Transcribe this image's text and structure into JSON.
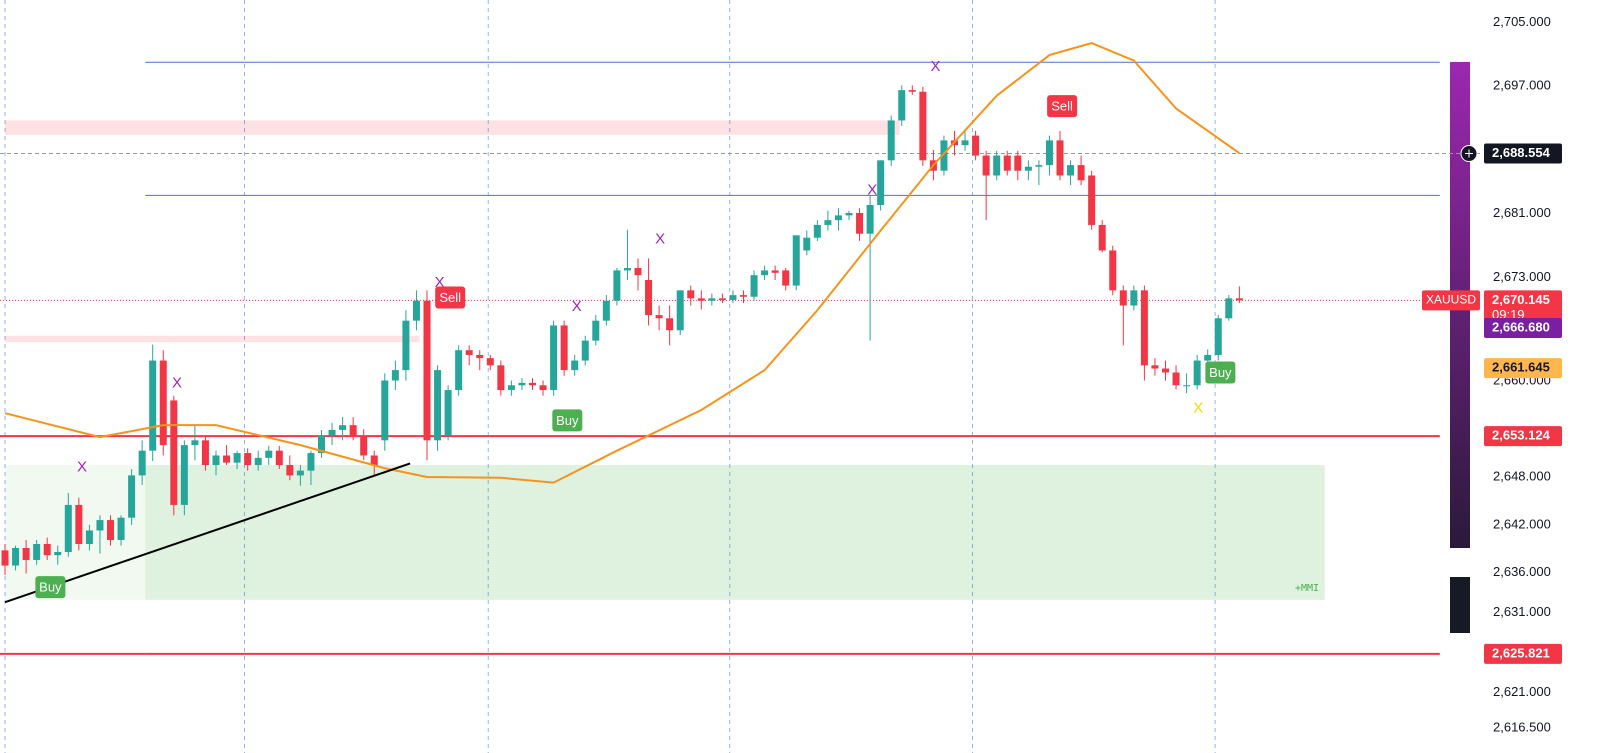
{
  "chart_data": {
    "type": "candlestick",
    "symbol": "XAUUSD",
    "up_color": "#26a69a",
    "down_color": "#f23645",
    "ylim": [
      2613.4,
      2707.8
    ],
    "yticks": [
      {
        "value": 2705,
        "label": "2,705.000"
      },
      {
        "value": 2697,
        "label": "2,697.000"
      },
      {
        "value": 2681,
        "label": "2,681.000"
      },
      {
        "value": 2673,
        "label": "2,673.000"
      },
      {
        "value": 2660,
        "label": "2,660.000"
      },
      {
        "value": 2648,
        "label": "2,648.000"
      },
      {
        "value": 2642,
        "label": "2,642.000"
      },
      {
        "value": 2636,
        "label": "2,636.000"
      },
      {
        "value": 2631,
        "label": "2,631.000"
      },
      {
        "value": 2621,
        "label": "2,621.000"
      },
      {
        "value": 2616.5,
        "label": "2,616.500"
      }
    ],
    "xticks": [
      0,
      22.7,
      45.8,
      68.7,
      91.7,
      114.7
    ],
    "ohlc": [
      [
        2638.8,
        2639.6,
        2635.7,
        2636.9
      ],
      [
        2636.9,
        2639.4,
        2636.3,
        2639.1
      ],
      [
        2639.1,
        2640.1,
        2635.9,
        2637.6
      ],
      [
        2637.6,
        2640.1,
        2637.0,
        2639.6
      ],
      [
        2639.6,
        2640.4,
        2637.6,
        2638.2
      ],
      [
        2638.2,
        2639.4,
        2637.0,
        2638.6
      ],
      [
        2638.6,
        2646.0,
        2638.0,
        2644.5
      ],
      [
        2644.5,
        2645.4,
        2638.8,
        2639.6
      ],
      [
        2639.6,
        2642.0,
        2638.8,
        2641.3
      ],
      [
        2641.3,
        2643.2,
        2638.4,
        2642.6
      ],
      [
        2642.6,
        2643.2,
        2639.4,
        2640.1
      ],
      [
        2640.1,
        2643.2,
        2639.4,
        2642.9
      ],
      [
        2642.9,
        2649.0,
        2642.0,
        2648.2
      ],
      [
        2648.2,
        2652.6,
        2647.0,
        2651.3
      ],
      [
        2651.3,
        2664.6,
        2650.0,
        2662.6
      ],
      [
        2662.6,
        2663.9,
        2650.7,
        2652.0
      ],
      [
        2657.6,
        2658.2,
        2643.2,
        2644.5
      ],
      [
        2644.5,
        2652.6,
        2643.2,
        2652.0
      ],
      [
        2652.0,
        2654.5,
        2650.1,
        2652.6
      ],
      [
        2652.6,
        2653.2,
        2648.8,
        2649.5
      ],
      [
        2649.5,
        2651.3,
        2648.2,
        2650.7
      ],
      [
        2650.7,
        2652.0,
        2649.5,
        2649.8
      ],
      [
        2649.8,
        2651.3,
        2649.0,
        2651.0
      ],
      [
        2651.0,
        2651.6,
        2648.8,
        2649.5
      ],
      [
        2649.5,
        2651.3,
        2648.8,
        2650.4
      ],
      [
        2650.4,
        2651.9,
        2649.5,
        2651.3
      ],
      [
        2651.3,
        2651.9,
        2649.0,
        2649.5
      ],
      [
        2649.5,
        2650.7,
        2647.6,
        2648.2
      ],
      [
        2648.2,
        2649.5,
        2646.9,
        2648.8
      ],
      [
        2648.8,
        2651.3,
        2647.0,
        2651.0
      ],
      [
        2651.0,
        2653.9,
        2650.4,
        2653.2
      ],
      [
        2653.2,
        2654.8,
        2652.0,
        2653.9
      ],
      [
        2653.9,
        2655.5,
        2652.6,
        2654.5
      ],
      [
        2654.5,
        2655.5,
        2652.6,
        2653.2
      ],
      [
        2653.2,
        2654.0,
        2650.1,
        2650.7
      ],
      [
        2650.7,
        2651.3,
        2648.2,
        2649.5
      ],
      [
        2652.6,
        2661.0,
        2651.3,
        2660.1
      ],
      [
        2660.1,
        2662.6,
        2658.9,
        2661.4
      ],
      [
        2661.4,
        2668.9,
        2660.1,
        2667.6
      ],
      [
        2667.6,
        2671.4,
        2666.4,
        2670.1
      ],
      [
        2670.1,
        2671.4,
        2650.1,
        2652.6
      ],
      [
        2652.6,
        2662.0,
        2651.3,
        2661.4
      ],
      [
        2653.2,
        2659.5,
        2652.6,
        2658.9
      ],
      [
        2658.9,
        2664.5,
        2658.2,
        2663.9
      ],
      [
        2663.9,
        2664.5,
        2662.0,
        2663.3
      ],
      [
        2663.3,
        2663.9,
        2661.4,
        2662.9
      ],
      [
        2662.9,
        2663.3,
        2661.4,
        2662.0
      ],
      [
        2662.0,
        2662.6,
        2658.2,
        2658.9
      ],
      [
        2658.9,
        2660.1,
        2658.2,
        2659.5
      ],
      [
        2659.5,
        2660.4,
        2658.9,
        2659.8
      ],
      [
        2659.8,
        2660.4,
        2658.9,
        2659.5
      ],
      [
        2659.5,
        2660.1,
        2658.2,
        2658.9
      ],
      [
        2658.9,
        2667.6,
        2658.2,
        2667.0
      ],
      [
        2667.0,
        2667.6,
        2660.7,
        2661.4
      ],
      [
        2661.4,
        2663.3,
        2660.7,
        2662.6
      ],
      [
        2662.6,
        2665.7,
        2662.0,
        2665.1
      ],
      [
        2665.1,
        2668.3,
        2664.5,
        2667.6
      ],
      [
        2667.6,
        2670.8,
        2667.0,
        2670.1
      ],
      [
        2670.1,
        2674.2,
        2669.5,
        2673.9
      ],
      [
        2673.9,
        2679.0,
        2672.7,
        2674.2
      ],
      [
        2674.2,
        2675.4,
        2671.4,
        2673.3
      ],
      [
        2672.7,
        2675.4,
        2667.0,
        2668.3
      ],
      [
        2668.3,
        2669.5,
        2666.4,
        2667.9
      ],
      [
        2667.9,
        2669.5,
        2664.5,
        2666.4
      ],
      [
        2666.4,
        2671.4,
        2665.8,
        2671.4
      ],
      [
        2671.4,
        2672.0,
        2669.5,
        2670.4
      ],
      [
        2670.4,
        2671.4,
        2669.0,
        2670.1
      ],
      [
        2670.1,
        2671.0,
        2669.5,
        2670.4
      ],
      [
        2670.4,
        2671.0,
        2669.8,
        2670.2
      ],
      [
        2670.2,
        2671.4,
        2669.8,
        2670.8
      ],
      [
        2670.8,
        2671.4,
        2669.8,
        2670.6
      ],
      [
        2670.6,
        2673.9,
        2670.1,
        2673.3
      ],
      [
        2673.3,
        2674.5,
        2672.7,
        2673.9
      ],
      [
        2673.9,
        2674.5,
        2672.7,
        2673.6
      ],
      [
        2673.9,
        2674.2,
        2671.4,
        2672.0
      ],
      [
        2672.0,
        2678.3,
        2671.4,
        2678.3
      ],
      [
        2676.4,
        2678.9,
        2675.8,
        2678.0
      ],
      [
        2678.0,
        2680.2,
        2677.6,
        2679.6
      ],
      [
        2679.6,
        2681.4,
        2678.9,
        2680.2
      ],
      [
        2680.2,
        2681.7,
        2678.9,
        2680.8
      ],
      [
        2680.8,
        2681.4,
        2680.2,
        2681.1
      ],
      [
        2681.1,
        2681.7,
        2677.6,
        2678.5
      ],
      [
        2678.5,
        2683.3,
        2665.1,
        2682.1
      ],
      [
        2682.1,
        2687.7,
        2681.4,
        2687.7
      ],
      [
        2687.7,
        2693.3,
        2687.0,
        2692.7
      ],
      [
        2692.7,
        2697.1,
        2692.0,
        2696.5
      ],
      [
        2696.5,
        2697.1,
        2695.9,
        2696.3
      ],
      [
        2696.3,
        2696.9,
        2687.0,
        2687.7
      ],
      [
        2687.7,
        2689.0,
        2685.2,
        2686.4
      ],
      [
        2686.4,
        2690.8,
        2685.8,
        2690.2
      ],
      [
        2690.2,
        2691.4,
        2688.3,
        2689.6
      ],
      [
        2689.6,
        2691.4,
        2688.9,
        2690.2
      ],
      [
        2690.8,
        2691.4,
        2687.7,
        2688.3
      ],
      [
        2688.3,
        2688.9,
        2680.2,
        2685.8
      ],
      [
        2685.8,
        2688.9,
        2685.2,
        2688.3
      ],
      [
        2688.3,
        2688.9,
        2685.8,
        2686.4
      ],
      [
        2688.3,
        2688.9,
        2685.2,
        2686.4
      ],
      [
        2686.4,
        2687.7,
        2685.2,
        2686.9
      ],
      [
        2686.9,
        2687.7,
        2684.6,
        2687.1
      ],
      [
        2687.1,
        2690.8,
        2685.8,
        2690.2
      ],
      [
        2690.2,
        2691.4,
        2685.2,
        2685.8
      ],
      [
        2685.8,
        2687.7,
        2684.6,
        2687.1
      ],
      [
        2687.1,
        2688.3,
        2684.6,
        2685.2
      ],
      [
        2685.8,
        2686.4,
        2679.0,
        2679.6
      ],
      [
        2679.6,
        2680.2,
        2676.2,
        2676.4
      ],
      [
        2676.4,
        2677.0,
        2670.8,
        2671.4
      ],
      [
        2671.4,
        2672.0,
        2664.5,
        2669.5
      ],
      [
        2669.5,
        2672.0,
        2668.9,
        2671.4
      ],
      [
        2671.4,
        2672.0,
        2660.1,
        2662.0
      ],
      [
        2662.0,
        2662.9,
        2660.7,
        2661.6
      ],
      [
        2661.6,
        2662.6,
        2660.1,
        2661.1
      ],
      [
        2661.1,
        2662.0,
        2659.0,
        2659.5
      ],
      [
        2659.5,
        2661.0,
        2658.5,
        2659.5
      ],
      [
        2659.5,
        2663.3,
        2659.0,
        2662.6
      ],
      [
        2662.6,
        2664.0,
        2662.0,
        2663.3
      ],
      [
        2663.3,
        2668.3,
        2662.6,
        2667.9
      ],
      [
        2667.9,
        2670.8,
        2667.6,
        2670.4
      ],
      [
        2670.4,
        2671.9,
        2669.8,
        2670.145
      ]
    ],
    "ma": {
      "color": "#f7931a",
      "x": [
        0,
        9,
        15,
        20,
        28,
        36,
        40,
        47,
        52,
        58,
        66,
        72,
        77,
        83,
        88,
        94,
        99,
        103,
        107,
        111,
        117
      ],
      "values": [
        2656.0,
        2653.0,
        2654.5,
        2654.5,
        2652.0,
        2649.1,
        2648.0,
        2647.9,
        2647.3,
        2651.3,
        2656.4,
        2661.4,
        2668.9,
        2678.9,
        2687.1,
        2695.8,
        2700.9,
        2702.4,
        2700.2,
        2694.2,
        2688.6
      ]
    },
    "trendline": {
      "color": "#000000",
      "x": [
        0,
        38.4
      ],
      "values": [
        2632.3,
        2649.7
      ]
    },
    "levels": [
      {
        "value": 2700.0,
        "color": "#4a6fe3"
      },
      {
        "value": 2683.3,
        "color": "#4a6fe3"
      },
      {
        "value": 2653.124,
        "color": "#f23645"
      },
      {
        "value": 2625.821,
        "color": "#f23645"
      }
    ],
    "zones": [
      {
        "from": 0,
        "to": 84.8,
        "low": 2690.9,
        "high": 2692.7,
        "color": "rgba(242,54,69,0.15)"
      },
      {
        "from": 0,
        "to": 39.3,
        "low": 2664.9,
        "high": 2665.7,
        "color": "rgba(242,54,69,0.15)"
      },
      {
        "from": 0,
        "to": 13.3,
        "low": 2632.6,
        "high": 2649.5,
        "color": "rgba(76,175,80,0.08)"
      },
      {
        "from": 13.3,
        "to": 125.1,
        "low": 2632.6,
        "high": 2649.5,
        "color": "rgba(76,175,80,0.18)"
      }
    ],
    "signals": [
      {
        "label": "Buy",
        "x": 4.3,
        "y": 2634.2,
        "color": "#4caf50"
      },
      {
        "label": "Sell",
        "x": 42.2,
        "y": 2670.5,
        "color": "#f23645"
      },
      {
        "label": "Buy",
        "x": 53.3,
        "y": 2655.1,
        "color": "#4caf50"
      },
      {
        "label": "Sell",
        "x": 100.2,
        "y": 2694.5,
        "color": "#f23645"
      },
      {
        "label": "Buy",
        "x": 115.2,
        "y": 2661.1,
        "color": "#4caf50"
      }
    ],
    "marks": [
      {
        "label": "X",
        "x": 7.3,
        "y": 2649.2,
        "color": "#9c27b0"
      },
      {
        "label": "X",
        "x": 16.3,
        "y": 2659.7,
        "color": "#9c27b0"
      },
      {
        "label": "X",
        "x": 41.2,
        "y": 2672.3,
        "color": "#9c27b0"
      },
      {
        "label": "X",
        "x": 54.2,
        "y": 2669.3,
        "color": "#9c27b0"
      },
      {
        "label": "X",
        "x": 62.1,
        "y": 2677.8,
        "color": "#9c27b0"
      },
      {
        "label": "X",
        "x": 82.2,
        "y": 2683.9,
        "color": "#9c27b0"
      },
      {
        "label": "X",
        "x": 88.2,
        "y": 2699.4,
        "color": "#9c27b0"
      },
      {
        "label": "X",
        "x": 113.1,
        "y": 2656.6,
        "color": "#f5d800"
      }
    ],
    "crosshair": 2688.554,
    "last_price": {
      "value": 2670.145,
      "label": "2,670.145",
      "countdown": "09:19",
      "color": "#f23645"
    },
    "price_tags": [
      {
        "value": 2688.554,
        "label": "2,688.554",
        "color": "#131722"
      },
      {
        "value": 2666.68,
        "label": "2,666.680",
        "color": "#7b1fa2"
      },
      {
        "value": 2661.645,
        "label": "2,661.645",
        "color": "#ffb74d"
      },
      {
        "value": 2653.124,
        "label": "2,653.124",
        "color": "#f23645"
      },
      {
        "value": 2625.821,
        "label": "2,625.821",
        "color": "#f23645"
      }
    ],
    "note": "+MMI"
  }
}
